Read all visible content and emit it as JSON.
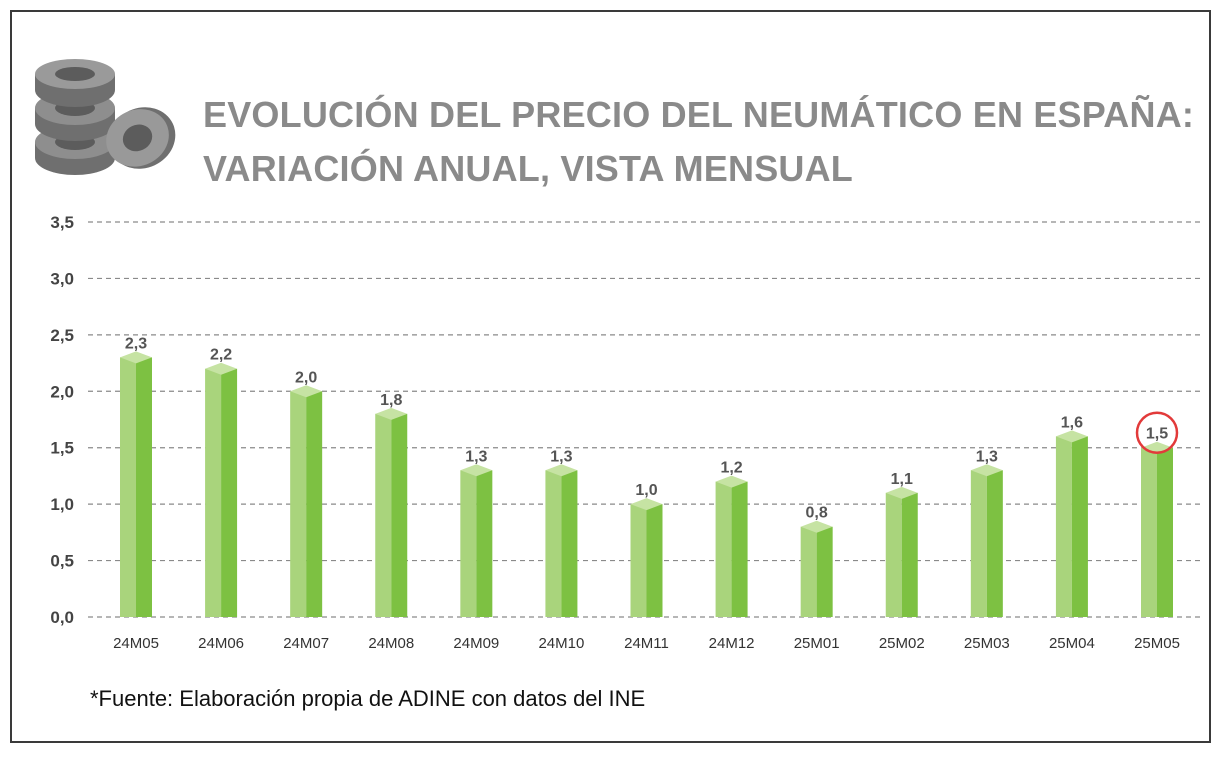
{
  "title_lines": [
    "EVOLUCIÓN DEL PRECIO DEL NEUMÁTICO EN ESPAÑA:",
    "VARIACIÓN ANUAL, VISTA MENSUAL"
  ],
  "source_note": "*Fuente: Elaboración propia de ADINE con datos del INE",
  "icons": {
    "logo": "tire-stack-icon",
    "highlight": "red-circle-highlight"
  },
  "colors": {
    "bar_light": "#a9d47c",
    "bar_main": "#7dc142",
    "bar_top": "#c6e3a3",
    "title_gray": "#8a8a8a",
    "highlight_red": "#e23a3a"
  },
  "chart_data": {
    "type": "bar",
    "title": "EVOLUCIÓN DEL PRECIO DEL NEUMÁTICO EN ESPAÑA: VARIACIÓN ANUAL, VISTA MENSUAL",
    "categories": [
      "24M05",
      "24M06",
      "24M07",
      "24M08",
      "24M09",
      "24M10",
      "24M11",
      "24M12",
      "25M01",
      "25M02",
      "25M03",
      "25M04",
      "25M05"
    ],
    "values": [
      2.3,
      2.2,
      2.0,
      1.8,
      1.3,
      1.3,
      1.0,
      1.2,
      0.8,
      1.1,
      1.3,
      1.6,
      1.5
    ],
    "value_labels": [
      "2,3",
      "2,2",
      "2,0",
      "1,8",
      "1,3",
      "1,3",
      "1,0",
      "1,2",
      "0,8",
      "1,1",
      "1,3",
      "1,6",
      "1,5"
    ],
    "y_ticks": [
      0.0,
      0.5,
      1.0,
      1.5,
      2.0,
      2.5,
      3.0,
      3.5
    ],
    "y_tick_labels": [
      "0,0",
      "0,5",
      "1,0",
      "1,5",
      "2,0",
      "2,5",
      "3,0",
      "3,5"
    ],
    "ylim": [
      0,
      3.5
    ],
    "xlabel": "",
    "ylabel": "",
    "grid": true,
    "grid_style": "dashed",
    "legend": "none",
    "highlighted_category": "25M05"
  }
}
